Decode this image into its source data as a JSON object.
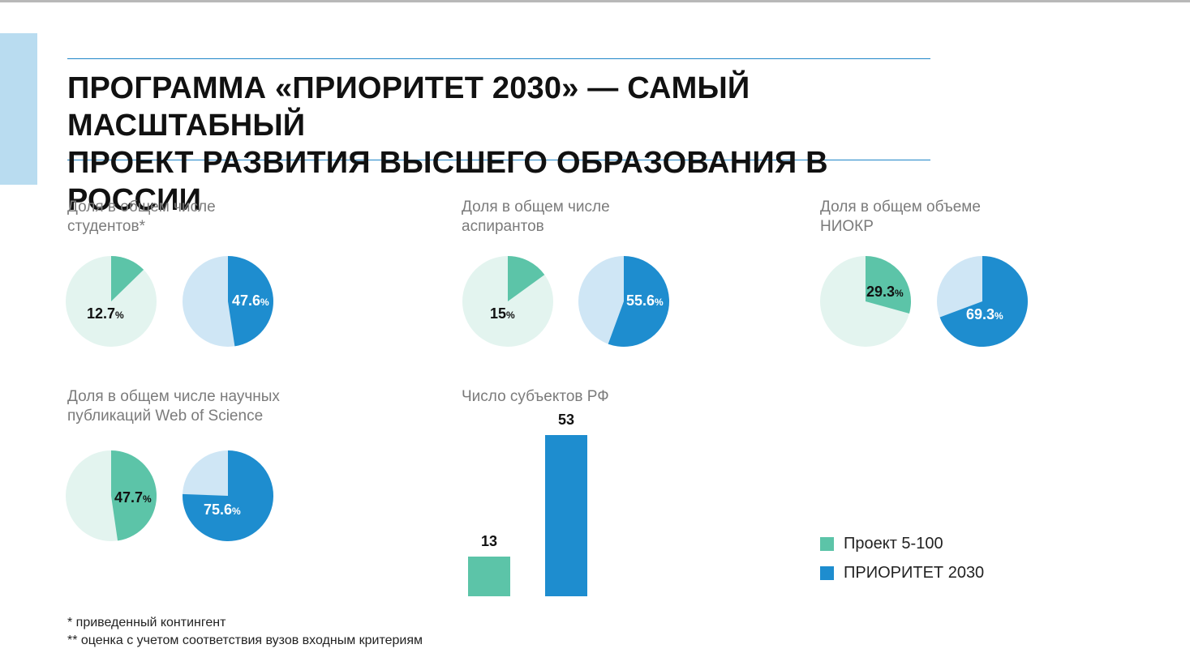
{
  "title": {
    "line1": "ПРОГРАММА «ПРИОРИТЕТ 2030» — САМЫЙ МАСШТАБНЫЙ",
    "line2": "ПРОЕКТ РАЗВИТИЯ ВЫСШЕГО ОБРАЗОВАНИЯ В РОССИИ"
  },
  "colors": {
    "green": "#5cc4a8",
    "green_light": "#e3f4ef",
    "blue": "#1e8dcf",
    "blue_light": "#cfe6f5",
    "rule": "#1f86c8",
    "side_bar": "#b9dcf0"
  },
  "panels": {
    "students": {
      "label1": "Доля в общем числе",
      "label2": "студентов*"
    },
    "postgrads": {
      "label1": "Доля в общем числе",
      "label2": "аспирантов"
    },
    "rnd": {
      "label1": "Доля в общем объеме",
      "label2": "НИОКР"
    },
    "publications": {
      "label1": "Доля в общем числе научных",
      "label2": "публикаций Web of Science"
    },
    "regions": {
      "label1": "Число субъектов РФ"
    }
  },
  "legend": {
    "items": [
      {
        "label": "Проект 5-100",
        "color": "#5cc4a8"
      },
      {
        "label": "ПРИОРИТЕТ 2030",
        "color": "#1e8dcf"
      }
    ]
  },
  "notes": {
    "note1": "* приведенный контингент",
    "note2": "** оценка с учетом соответствия вузов входным критериям"
  },
  "chart_data": [
    {
      "type": "pie",
      "title": "Доля в общем числе студентов*",
      "series": [
        {
          "name": "Проект 5-100",
          "value": 12.7,
          "label": "12.7"
        },
        {
          "name": "ПРИОРИТЕТ 2030",
          "value": 47.6,
          "label": "47.6"
        }
      ],
      "unit": "%"
    },
    {
      "type": "pie",
      "title": "Доля в общем числе аспирантов",
      "series": [
        {
          "name": "Проект 5-100",
          "value": 15,
          "label": "15"
        },
        {
          "name": "ПРИОРИТЕТ 2030",
          "value": 55.6,
          "label": "55.6"
        }
      ],
      "unit": "%"
    },
    {
      "type": "pie",
      "title": "Доля в общем объеме НИОКР",
      "series": [
        {
          "name": "Проект 5-100",
          "value": 29.3,
          "label": "29.3"
        },
        {
          "name": "ПРИОРИТЕТ 2030",
          "value": 69.3,
          "label": "69.3"
        }
      ],
      "unit": "%"
    },
    {
      "type": "pie",
      "title": "Доля в общем числе научных публикаций Web of Science",
      "series": [
        {
          "name": "Проект 5-100",
          "value": 47.7,
          "label": "47.7"
        },
        {
          "name": "ПРИОРИТЕТ 2030",
          "value": 75.6,
          "label": "75.6"
        }
      ],
      "unit": "%"
    },
    {
      "type": "bar",
      "title": "Число субъектов РФ",
      "categories": [
        "Проект 5-100",
        "ПРИОРИТЕТ 2030"
      ],
      "values": [
        13,
        53
      ]
    }
  ]
}
